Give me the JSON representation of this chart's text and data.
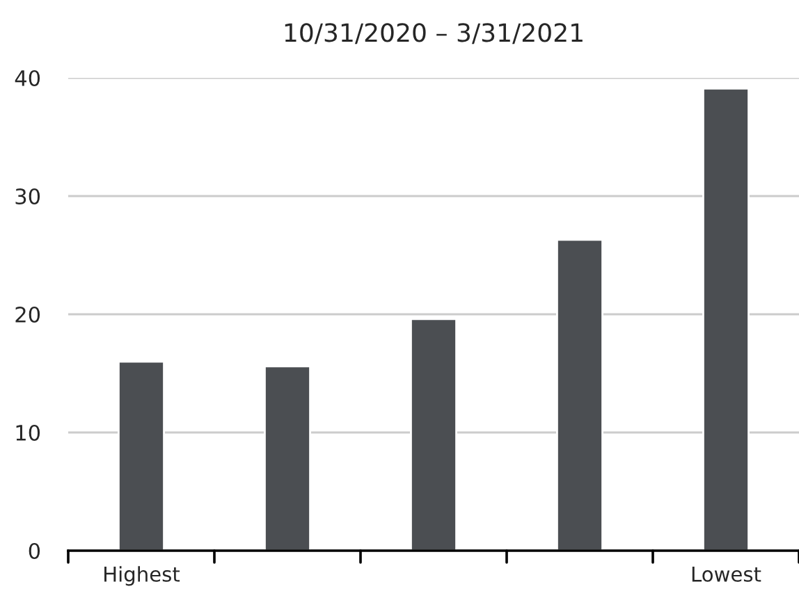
{
  "chart_data": {
    "type": "bar",
    "title": "10/31/2020 – 3/31/2021",
    "categories": [
      "Highest",
      null,
      null,
      null,
      "Lowest"
    ],
    "values": [
      16.0,
      15.6,
      19.6,
      26.3,
      39.1
    ],
    "color": "#4b4e52",
    "ylim": [
      0,
      40
    ],
    "yticks": [
      0,
      10,
      20,
      30,
      40
    ],
    "grid": "y",
    "legend": false
  }
}
